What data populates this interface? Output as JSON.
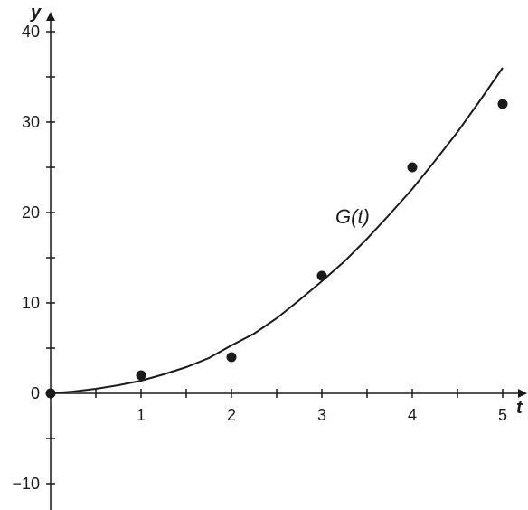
{
  "chart_data": {
    "type": "scatter",
    "title": "",
    "xlabel": "t",
    "ylabel": "y",
    "xlim": [
      0,
      5.25
    ],
    "ylim": [
      -13,
      42
    ],
    "x_ticks": [
      0.5,
      1,
      1.5,
      2,
      2.5,
      3,
      3.5,
      4,
      4.5,
      5
    ],
    "x_tick_labels": [
      {
        "value": 1,
        "label": "1"
      },
      {
        "value": 2,
        "label": "2"
      },
      {
        "value": 3,
        "label": "3"
      },
      {
        "value": 4,
        "label": "4"
      },
      {
        "value": 5,
        "label": "5"
      }
    ],
    "y_ticks": [
      -10,
      -5,
      5,
      10,
      15,
      20,
      25,
      30,
      35,
      40
    ],
    "y_tick_labels": [
      {
        "value": -10,
        "label": "−10"
      },
      {
        "value": 0,
        "label": "0"
      },
      {
        "value": 10,
        "label": "10"
      },
      {
        "value": 20,
        "label": "20"
      },
      {
        "value": 30,
        "label": "30"
      },
      {
        "value": 40,
        "label": "40"
      }
    ],
    "grid": false,
    "series": [
      {
        "kind": "scatter",
        "points": [
          {
            "x": 0,
            "y": 0
          },
          {
            "x": 1,
            "y": 2
          },
          {
            "x": 2,
            "y": 4
          },
          {
            "x": 3,
            "y": 13
          },
          {
            "x": 4,
            "y": 25
          },
          {
            "x": 5,
            "y": 32
          }
        ]
      },
      {
        "kind": "line",
        "name": "G(t)",
        "x": [
          0,
          0.25,
          0.5,
          0.75,
          1,
          1.25,
          1.5,
          1.75,
          2,
          2.25,
          2.5,
          2.75,
          3,
          3.25,
          3.5,
          3.75,
          4,
          4.25,
          4.5,
          4.75,
          5
        ],
        "y": [
          0,
          0.2,
          0.5,
          0.9,
          1.4,
          2.1,
          2.9,
          3.9,
          5.3,
          6.6,
          8.3,
          10.3,
          12.4,
          14.6,
          17.1,
          19.8,
          22.6,
          25.7,
          28.9,
          32.4,
          36
        ]
      }
    ],
    "annotations": [
      {
        "text": "G(t)",
        "x": 3.15,
        "y": 18.8
      }
    ],
    "colors": {
      "ink": "#1a1a1a",
      "background": "#ffffff"
    }
  }
}
